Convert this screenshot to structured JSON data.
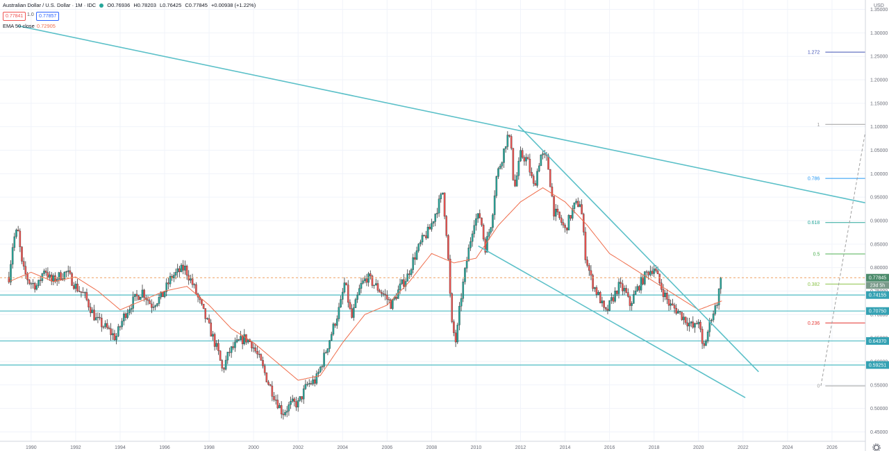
{
  "header": {
    "symbol": "Australian Dollar / U.S. Dollar · 1M · IDC",
    "open": "O0.76936",
    "high": "H0.78203",
    "low": "L0.76425",
    "close": "C0.77845",
    "change": "+0.00938 (+1.22%)",
    "sell_price": "0.77841",
    "spread": "1.0",
    "buy_price": "0.77857",
    "ema_label": "EMA 50 close",
    "ema_value": "0.72905"
  },
  "colors": {
    "up": "#26a69a",
    "down": "#ef5350",
    "trendline": "#5bc0c8",
    "ema": "#ef6c4a",
    "last_price": "#4b8b6b"
  },
  "chart_data": {
    "type": "candlestick",
    "currency": "USD",
    "x_ticks": [
      "1990",
      "1992",
      "1994",
      "1996",
      "1998",
      "2000",
      "2002",
      "2004",
      "2006",
      "2008",
      "2010",
      "2012",
      "2014",
      "2016",
      "2018",
      "2020",
      "2022",
      "2024",
      "2026"
    ],
    "y_ticks": [
      "1.35000",
      "1.30000",
      "1.25000",
      "1.20000",
      "1.15000",
      "1.10000",
      "1.05000",
      "1.00000",
      "0.95000",
      "0.90000",
      "0.85000",
      "0.80000",
      "0.75000",
      "0.70000",
      "0.65000",
      "0.60000",
      "0.55000",
      "0.50000",
      "0.45000"
    ],
    "ylim": [
      0.43,
      1.37
    ],
    "xlim": [
      1988.6,
      2027.5
    ],
    "monthly_path": [
      [
        1989.0,
        0.78
      ],
      [
        1989.2,
        0.86
      ],
      [
        1989.4,
        0.88
      ],
      [
        1989.6,
        0.8
      ],
      [
        1989.9,
        0.77
      ],
      [
        1990.3,
        0.76
      ],
      [
        1990.6,
        0.8
      ],
      [
        1990.9,
        0.77
      ],
      [
        1991.2,
        0.78
      ],
      [
        1991.6,
        0.79
      ],
      [
        1992.0,
        0.76
      ],
      [
        1992.4,
        0.74
      ],
      [
        1992.9,
        0.69
      ],
      [
        1993.4,
        0.67
      ],
      [
        1993.8,
        0.65
      ],
      [
        1994.2,
        0.7
      ],
      [
        1994.6,
        0.73
      ],
      [
        1995.0,
        0.75
      ],
      [
        1995.4,
        0.72
      ],
      [
        1995.9,
        0.74
      ],
      [
        1996.3,
        0.78
      ],
      [
        1996.6,
        0.79
      ],
      [
        1996.9,
        0.8
      ],
      [
        1997.3,
        0.76
      ],
      [
        1997.7,
        0.71
      ],
      [
        1998.1,
        0.66
      ],
      [
        1998.4,
        0.62
      ],
      [
        1998.6,
        0.58
      ],
      [
        1998.9,
        0.62
      ],
      [
        1999.3,
        0.64
      ],
      [
        1999.6,
        0.65
      ],
      [
        1999.9,
        0.64
      ],
      [
        2000.3,
        0.6
      ],
      [
        2000.7,
        0.55
      ],
      [
        2001.0,
        0.52
      ],
      [
        2001.3,
        0.49
      ],
      [
        2001.7,
        0.51
      ],
      [
        2002.0,
        0.51
      ],
      [
        2002.4,
        0.55
      ],
      [
        2002.8,
        0.56
      ],
      [
        2003.1,
        0.6
      ],
      [
        2003.5,
        0.66
      ],
      [
        2003.9,
        0.72
      ],
      [
        2004.1,
        0.77
      ],
      [
        2004.4,
        0.69
      ],
      [
        2004.8,
        0.76
      ],
      [
        2005.1,
        0.78
      ],
      [
        2005.5,
        0.76
      ],
      [
        2005.9,
        0.74
      ],
      [
        2006.2,
        0.72
      ],
      [
        2006.6,
        0.76
      ],
      [
        2006.9,
        0.78
      ],
      [
        2007.2,
        0.82
      ],
      [
        2007.6,
        0.86
      ],
      [
        2007.9,
        0.88
      ],
      [
        2008.2,
        0.92
      ],
      [
        2008.5,
        0.96
      ],
      [
        2008.7,
        0.86
      ],
      [
        2008.9,
        0.68
      ],
      [
        2009.1,
        0.64
      ],
      [
        2009.3,
        0.73
      ],
      [
        2009.6,
        0.82
      ],
      [
        2009.9,
        0.9
      ],
      [
        2010.2,
        0.91
      ],
      [
        2010.4,
        0.84
      ],
      [
        2010.7,
        0.9
      ],
      [
        2010.9,
        0.99
      ],
      [
        2011.2,
        1.04
      ],
      [
        2011.4,
        1.08
      ],
      [
        2011.6,
        1.06
      ],
      [
        2011.7,
        0.96
      ],
      [
        2012.0,
        1.04
      ],
      [
        2012.3,
        1.03
      ],
      [
        2012.6,
        0.97
      ],
      [
        2012.9,
        1.04
      ],
      [
        2013.2,
        1.03
      ],
      [
        2013.5,
        0.92
      ],
      [
        2013.8,
        0.9
      ],
      [
        2014.0,
        0.88
      ],
      [
        2014.4,
        0.93
      ],
      [
        2014.7,
        0.94
      ],
      [
        2014.9,
        0.83
      ],
      [
        2015.2,
        0.77
      ],
      [
        2015.6,
        0.73
      ],
      [
        2015.8,
        0.7
      ],
      [
        2016.1,
        0.73
      ],
      [
        2016.4,
        0.76
      ],
      [
        2016.7,
        0.75
      ],
      [
        2016.9,
        0.72
      ],
      [
        2017.3,
        0.76
      ],
      [
        2017.7,
        0.79
      ],
      [
        2018.0,
        0.8
      ],
      [
        2018.3,
        0.76
      ],
      [
        2018.7,
        0.72
      ],
      [
        2019.0,
        0.71
      ],
      [
        2019.4,
        0.69
      ],
      [
        2019.8,
        0.67
      ],
      [
        2020.0,
        0.69
      ],
      [
        2020.2,
        0.62
      ],
      [
        2020.4,
        0.66
      ],
      [
        2020.6,
        0.7
      ],
      [
        2020.8,
        0.72
      ],
      [
        2021.0,
        0.77
      ],
      [
        2021.05,
        0.7785
      ]
    ],
    "ema50_path": [
      [
        1989.0,
        0.77
      ],
      [
        1990.0,
        0.79
      ],
      [
        1991.0,
        0.77
      ],
      [
        1992.0,
        0.78
      ],
      [
        1993.0,
        0.75
      ],
      [
        1994.0,
        0.71
      ],
      [
        1995.0,
        0.73
      ],
      [
        1996.0,
        0.75
      ],
      [
        1997.0,
        0.76
      ],
      [
        1998.0,
        0.72
      ],
      [
        1999.0,
        0.67
      ],
      [
        2000.0,
        0.64
      ],
      [
        2001.0,
        0.6
      ],
      [
        2002.0,
        0.56
      ],
      [
        2003.0,
        0.57
      ],
      [
        2004.0,
        0.64
      ],
      [
        2005.0,
        0.7
      ],
      [
        2006.0,
        0.72
      ],
      [
        2007.0,
        0.77
      ],
      [
        2008.0,
        0.83
      ],
      [
        2009.0,
        0.81
      ],
      [
        2010.0,
        0.82
      ],
      [
        2011.0,
        0.89
      ],
      [
        2012.0,
        0.94
      ],
      [
        2013.0,
        0.97
      ],
      [
        2014.0,
        0.94
      ],
      [
        2015.0,
        0.89
      ],
      [
        2016.0,
        0.83
      ],
      [
        2017.0,
        0.8
      ],
      [
        2018.0,
        0.77
      ],
      [
        2019.0,
        0.74
      ],
      [
        2020.0,
        0.71
      ],
      [
        2021.05,
        0.729
      ]
    ],
    "fib_levels": [
      {
        "label": "0",
        "value": 0.548,
        "color": "#9e9e9e"
      },
      {
        "label": "0.236",
        "value": 0.682,
        "color": "#e53935"
      },
      {
        "label": "0.382",
        "value": 0.765,
        "color": "#8bc34a"
      },
      {
        "label": "0.5",
        "value": 0.829,
        "color": "#4caf50"
      },
      {
        "label": "0.618",
        "value": 0.896,
        "color": "#26a69a"
      },
      {
        "label": "0.786",
        "value": 0.99,
        "color": "#2196f3"
      },
      {
        "label": "1",
        "value": 1.105,
        "color": "#9e9e9e"
      },
      {
        "label": "1.272",
        "value": 1.259,
        "color": "#3f51b5"
      }
    ],
    "fib_x_start": 2025.7,
    "horizontal_levels": [
      {
        "label": "0.74155",
        "value": 0.74155
      },
      {
        "label": "0.70750",
        "value": 0.7075
      },
      {
        "label": "0.64370",
        "value": 0.6437
      },
      {
        "label": "0.59251",
        "value": 0.59251
      }
    ],
    "trendlines": [
      {
        "x1": 1989.4,
        "y1": 1.315,
        "x2": 2027.5,
        "y2": 0.938
      },
      {
        "x1": 2011.9,
        "y1": 1.103,
        "x2": 2022.7,
        "y2": 0.578
      },
      {
        "x1": 2010.1,
        "y1": 0.846,
        "x2": 2022.1,
        "y2": 0.523
      }
    ],
    "fib_diagonal": {
      "x1": 2025.5,
      "y1": 0.548,
      "x2": 2027.5,
      "y2": 1.09
    },
    "last_price": {
      "label": "0.77845",
      "value": 0.77845
    },
    "countdown": "23d 5h"
  }
}
